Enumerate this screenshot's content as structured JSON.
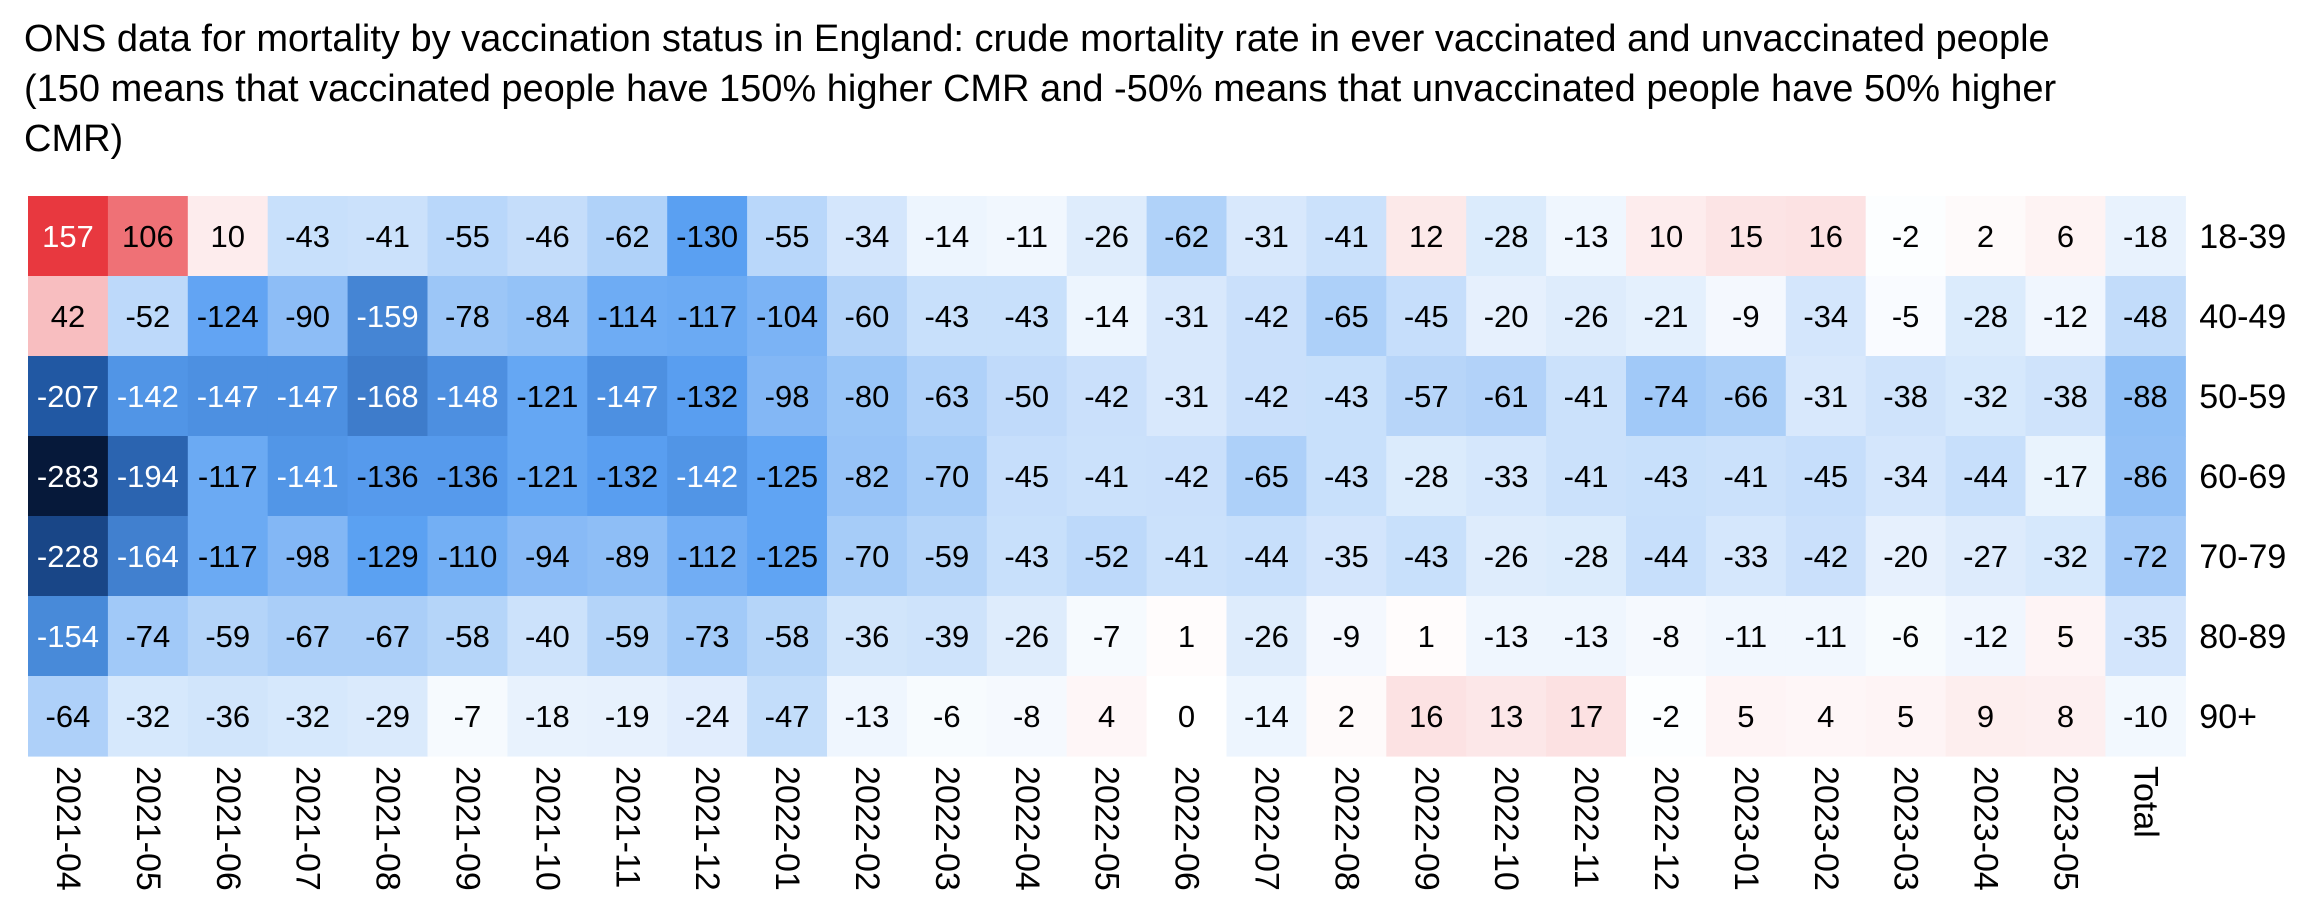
{
  "title": {
    "lines": [
      "ONS data for mortality by vaccination status in England: crude mortality rate in ever vaccinated and unvaccinated people",
      "(150 means that vaccinated people have 150% higher CMR and -50% means that unvaccinated people have 50% higher",
      "CMR)"
    ]
  },
  "colors": {
    "positive_max": "#e8353c",
    "zero": "#ffffff",
    "negative_mid": "#5aa0f2",
    "negative_dark": "#1f55a0",
    "negative_max": "#06193a"
  },
  "chart_data": {
    "type": "heatmap",
    "title": "ONS data for mortality by vaccination status in England: crude mortality rate in ever vaccinated and unvaccinated people (150 means that vaccinated people have 150% higher CMR and -50% means that unvaccinated people have 50% higher CMR)",
    "columns": [
      "2021-04",
      "2021-05",
      "2021-06",
      "2021-07",
      "2021-08",
      "2021-09",
      "2021-10",
      "2021-11",
      "2021-12",
      "2022-01",
      "2022-02",
      "2022-03",
      "2022-04",
      "2022-05",
      "2022-06",
      "2022-07",
      "2022-08",
      "2022-09",
      "2022-10",
      "2022-11",
      "2022-12",
      "2023-01",
      "2023-02",
      "2023-03",
      "2023-04",
      "2023-05",
      "Total"
    ],
    "rows": [
      "18-39",
      "40-49",
      "50-59",
      "60-69",
      "70-79",
      "80-89",
      "90+"
    ],
    "values": [
      [
        157,
        106,
        10,
        -43,
        -41,
        -55,
        -46,
        -62,
        -130,
        -55,
        -34,
        -14,
        -11,
        -26,
        -62,
        -31,
        -41,
        12,
        -28,
        -13,
        10,
        15,
        16,
        -2,
        2,
        6,
        -18
      ],
      [
        42,
        -52,
        -124,
        -90,
        -159,
        -78,
        -84,
        -114,
        -117,
        -104,
        -60,
        -43,
        -43,
        -14,
        -31,
        -42,
        -65,
        -45,
        -20,
        -26,
        -21,
        -9,
        -34,
        -5,
        -28,
        -12,
        -48
      ],
      [
        -207,
        -142,
        -147,
        -147,
        -168,
        -148,
        -121,
        -147,
        -132,
        -98,
        -80,
        -63,
        -50,
        -42,
        -31,
        -42,
        -43,
        -57,
        -61,
        -41,
        -74,
        -66,
        -31,
        -38,
        -32,
        -38,
        -88
      ],
      [
        -283,
        -194,
        -117,
        -141,
        -136,
        -136,
        -121,
        -132,
        -142,
        -125,
        -82,
        -70,
        -45,
        -41,
        -42,
        -65,
        -43,
        -28,
        -33,
        -41,
        -43,
        -41,
        -45,
        -34,
        -44,
        -17,
        -86
      ],
      [
        -228,
        -164,
        -117,
        -98,
        -129,
        -110,
        -94,
        -89,
        -112,
        -125,
        -70,
        -59,
        -43,
        -52,
        -41,
        -44,
        -35,
        -43,
        -26,
        -28,
        -44,
        -33,
        -42,
        -20,
        -27,
        -32,
        -72
      ],
      [
        -154,
        -74,
        -59,
        -67,
        -67,
        -58,
        -40,
        -59,
        -73,
        -58,
        -36,
        -39,
        -26,
        -7,
        1,
        -26,
        -9,
        1,
        -13,
        -13,
        -8,
        -11,
        -11,
        -6,
        -12,
        5,
        -35
      ],
      [
        -64,
        -32,
        -36,
        -32,
        -29,
        -7,
        -18,
        -19,
        -24,
        -47,
        -13,
        -6,
        -8,
        4,
        0,
        -14,
        2,
        16,
        13,
        17,
        -2,
        5,
        4,
        5,
        9,
        8,
        -10
      ]
    ]
  }
}
